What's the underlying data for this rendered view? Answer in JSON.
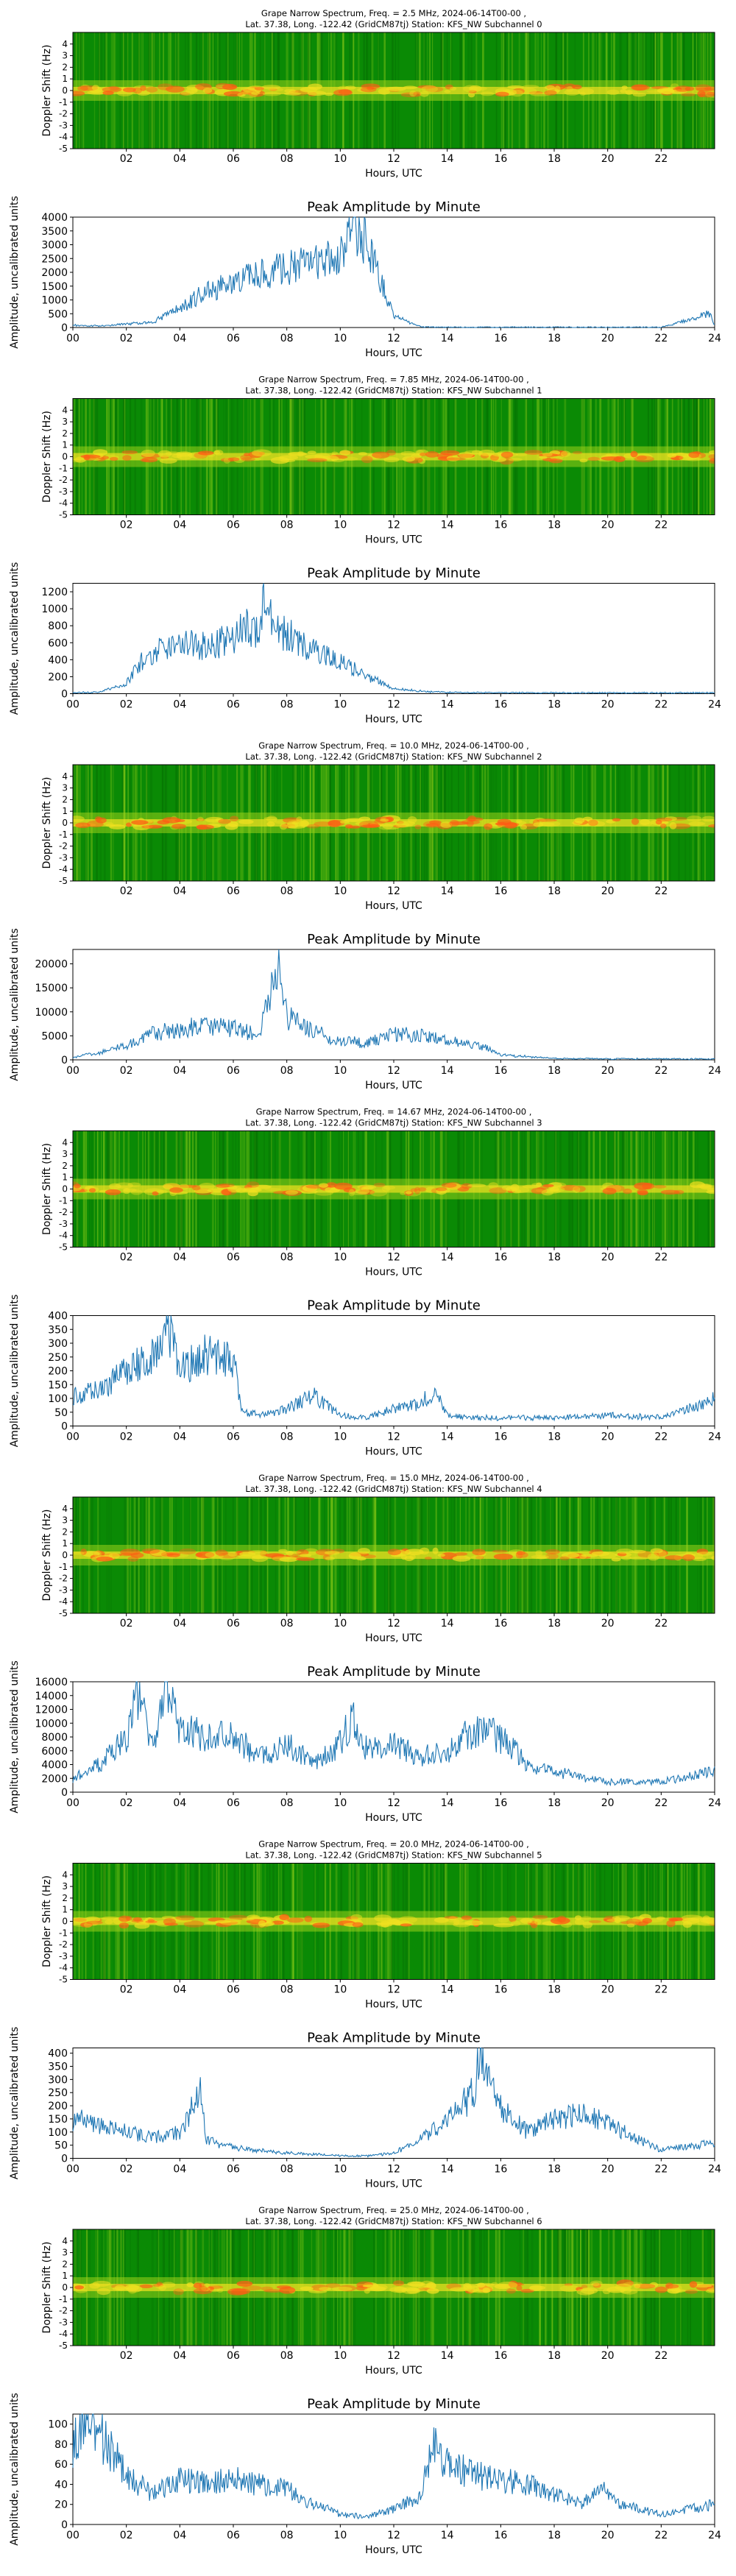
{
  "figure": {
    "xtick_labels_spectrogram": [
      "02",
      "04",
      "06",
      "08",
      "10",
      "12",
      "14",
      "16",
      "18",
      "20",
      "22"
    ],
    "xtick_labels_amplitude": [
      "00",
      "02",
      "04",
      "06",
      "08",
      "10",
      "12",
      "14",
      "16",
      "18",
      "20",
      "22",
      "24"
    ],
    "colors": {
      "line": "#1f77b4",
      "spec_bg": "#0a8a05",
      "spec_mid": "#9ad21a",
      "spec_hot": "#f0e020",
      "spec_peak": "#ff5a14"
    }
  },
  "chart_data": [
    {
      "type": "heatmap",
      "title_line1": "Grape Narrow Spectrum, Freq. = 2.5 MHz, 2024-06-14T00-00 ,",
      "title_line2": "Lat.  37.38, Long. -122.42 (GridCM87tj) Station: KFS_NW Subchannel 0",
      "xlabel": "Hours, UTC",
      "ylabel": "Doppler Shift (Hz)",
      "yticks": [
        "4",
        "3",
        "2",
        "1",
        "0",
        "-1",
        "-2",
        "-3",
        "-4",
        "-5"
      ],
      "xlim": [
        0,
        24
      ],
      "ylim": [
        -5,
        5
      ]
    },
    {
      "type": "line",
      "title": "Peak Amplitude by Minute",
      "xlabel": "Hours, UTC",
      "ylabel": "Amplitude, uncalibrated units",
      "yticks": [
        "0",
        "500",
        "1000",
        "1500",
        "2000",
        "2500",
        "3000",
        "3500",
        "4000"
      ],
      "xlim": [
        0,
        24
      ],
      "ylim": [
        0,
        4000
      ],
      "x": [
        0,
        1,
        2,
        3,
        4,
        5,
        6,
        7,
        8,
        9,
        10,
        10.5,
        11,
        11.5,
        12,
        13,
        14,
        16,
        18,
        20,
        22,
        23.8,
        24
      ],
      "y": [
        80,
        60,
        120,
        200,
        700,
        1300,
        1650,
        1900,
        2150,
        2350,
        2800,
        3600,
        3000,
        1700,
        400,
        30,
        10,
        10,
        10,
        10,
        10,
        500,
        100
      ]
    },
    {
      "type": "heatmap",
      "title_line1": "Grape Narrow Spectrum, Freq. = 7.85 MHz, 2024-06-14T00-00 ,",
      "title_line2": "Lat.  37.38, Long. -122.42 (GridCM87tj) Station: KFS_NW Subchannel 1",
      "xlabel": "Hours, UTC",
      "ylabel": "Doppler Shift (Hz)",
      "yticks": [
        "4",
        "3",
        "2",
        "1",
        "0",
        "-1",
        "-2",
        "-3",
        "-4",
        "-5"
      ],
      "xlim": [
        0,
        24
      ],
      "ylim": [
        -5,
        5
      ]
    },
    {
      "type": "line",
      "title": "Peak Amplitude by Minute",
      "xlabel": "Hours, UTC",
      "ylabel": "Amplitude, uncalibrated units",
      "yticks": [
        "0",
        "200",
        "400",
        "600",
        "800",
        "1000",
        "1200"
      ],
      "xlim": [
        0,
        24
      ],
      "ylim": [
        0,
        1300
      ],
      "x": [
        0,
        1,
        2,
        2.5,
        3,
        4,
        5,
        6,
        6.5,
        7,
        7.2,
        7.5,
        8,
        9,
        10,
        11,
        12,
        13,
        14,
        16,
        20,
        24
      ],
      "y": [
        10,
        20,
        120,
        350,
        500,
        580,
        560,
        650,
        780,
        680,
        1300,
        750,
        700,
        520,
        380,
        200,
        60,
        30,
        15,
        10,
        10,
        10
      ]
    },
    {
      "type": "heatmap",
      "title_line1": "Grape Narrow Spectrum, Freq. = 10.0 MHz, 2024-06-14T00-00 ,",
      "title_line2": "Lat.  37.38, Long. -122.42 (GridCM87tj) Station: KFS_NW Subchannel 2",
      "xlabel": "Hours, UTC",
      "ylabel": "Doppler Shift (Hz)",
      "yticks": [
        "4",
        "3",
        "2",
        "1",
        "0",
        "-1",
        "-2",
        "-3",
        "-4",
        "-5"
      ],
      "xlim": [
        0,
        24
      ],
      "ylim": [
        -5,
        5
      ]
    },
    {
      "type": "line",
      "title": "Peak Amplitude by Minute",
      "xlabel": "Hours, UTC",
      "ylabel": "Amplitude, uncalibrated units",
      "yticks": [
        "0",
        "5000",
        "10000",
        "15000",
        "20000"
      ],
      "xlim": [
        0,
        24
      ],
      "ylim": [
        0,
        23000
      ],
      "x": [
        0,
        1,
        2,
        3,
        4,
        5,
        6,
        7,
        7.7,
        8,
        9,
        10,
        11,
        12,
        13,
        14,
        15,
        15.5,
        16,
        18,
        20,
        22,
        24
      ],
      "y": [
        500,
        1500,
        3000,
        5500,
        6500,
        7000,
        6500,
        5500,
        22000,
        9000,
        6000,
        4000,
        3500,
        5500,
        5000,
        4000,
        3000,
        2500,
        1000,
        300,
        200,
        200,
        200
      ]
    },
    {
      "type": "heatmap",
      "title_line1": "Grape Narrow Spectrum, Freq. = 14.67 MHz, 2024-06-14T00-00 ,",
      "title_line2": "Lat.  37.38, Long. -122.42 (GridCM87tj) Station: KFS_NW Subchannel 3",
      "xlabel": "Hours, UTC",
      "ylabel": "Doppler Shift (Hz)",
      "yticks": [
        "4",
        "3",
        "2",
        "1",
        "0",
        "-1",
        "-2",
        "-3",
        "-4",
        "-5"
      ],
      "xlim": [
        0,
        24
      ],
      "ylim": [
        -5,
        5
      ]
    },
    {
      "type": "line",
      "title": "Peak Amplitude by Minute",
      "xlabel": "Hours, UTC",
      "ylabel": "Amplitude, uncalibrated units",
      "yticks": [
        "0",
        "50",
        "100",
        "150",
        "200",
        "250",
        "300",
        "350",
        "400"
      ],
      "xlim": [
        0,
        24
      ],
      "ylim": [
        0,
        400
      ],
      "x": [
        0,
        1,
        2,
        3,
        3.5,
        4,
        5,
        6,
        6.3,
        7,
        8,
        9,
        10,
        11,
        12,
        13,
        13.5,
        14,
        15,
        16,
        18,
        20,
        22,
        23,
        24
      ],
      "y": [
        110,
        130,
        200,
        250,
        400,
        200,
        260,
        250,
        50,
        40,
        60,
        110,
        40,
        30,
        60,
        80,
        130,
        40,
        30,
        30,
        30,
        40,
        30,
        60,
        100
      ]
    },
    {
      "type": "heatmap",
      "title_line1": "Grape Narrow Spectrum, Freq. = 15.0 MHz, 2024-06-14T00-00 ,",
      "title_line2": "Lat.  37.38, Long. -122.42 (GridCM87tj) Station: KFS_NW Subchannel 4",
      "xlabel": "Hours, UTC",
      "ylabel": "Doppler Shift (Hz)",
      "yticks": [
        "4",
        "3",
        "2",
        "1",
        "0",
        "-1",
        "-2",
        "-3",
        "-4",
        "-5"
      ],
      "xlim": [
        0,
        24
      ],
      "ylim": [
        -5,
        5
      ]
    },
    {
      "type": "line",
      "title": "Peak Amplitude by Minute",
      "xlabel": "Hours, UTC",
      "ylabel": "Amplitude, uncalibrated units",
      "yticks": [
        "0",
        "2000",
        "4000",
        "6000",
        "8000",
        "10000",
        "12000",
        "14000",
        "16000"
      ],
      "xlim": [
        0,
        24
      ],
      "ylim": [
        0,
        16000
      ],
      "x": [
        0,
        1,
        2,
        2.5,
        3,
        3.5,
        4,
        5,
        6,
        7,
        8,
        9,
        10,
        10.5,
        11,
        12,
        13,
        14,
        15,
        16,
        17,
        18,
        20,
        22,
        24
      ],
      "y": [
        2000,
        4000,
        8000,
        15500,
        6000,
        16000,
        9000,
        8000,
        8000,
        5000,
        7000,
        4000,
        7000,
        11000,
        6000,
        7000,
        5000,
        6000,
        9000,
        8000,
        4000,
        3000,
        1500,
        1500,
        3000
      ]
    },
    {
      "type": "heatmap",
      "title_line1": "Grape Narrow Spectrum, Freq. = 20.0 MHz, 2024-06-14T00-00 ,",
      "title_line2": "Lat.  37.38, Long. -122.42 (GridCM87tj) Station: KFS_NW Subchannel 5",
      "xlabel": "Hours, UTC",
      "ylabel": "Doppler Shift (Hz)",
      "yticks": [
        "4",
        "3",
        "2",
        "1",
        "0",
        "-1",
        "-2",
        "-3",
        "-4",
        "-5"
      ],
      "xlim": [
        0,
        24
      ],
      "ylim": [
        -5,
        5
      ]
    },
    {
      "type": "line",
      "title": "Peak Amplitude by Minute",
      "xlabel": "Hours, UTC",
      "ylabel": "Amplitude, uncalibrated units",
      "yticks": [
        "0",
        "50",
        "100",
        "150",
        "200",
        "250",
        "300",
        "350",
        "400"
      ],
      "xlim": [
        0,
        24
      ],
      "ylim": [
        0,
        420
      ],
      "x": [
        0,
        1,
        2,
        3,
        4,
        4.8,
        5,
        6,
        8,
        10,
        11,
        12,
        13,
        14,
        15,
        15.2,
        16,
        17,
        18,
        19,
        20,
        22,
        24
      ],
      "y": [
        150,
        130,
        100,
        80,
        100,
        250,
        70,
        40,
        20,
        10,
        10,
        20,
        70,
        140,
        250,
        400,
        200,
        100,
        150,
        170,
        130,
        30,
        60
      ]
    },
    {
      "type": "heatmap",
      "title_line1": "Grape Narrow Spectrum, Freq. = 25.0 MHz, 2024-06-14T00-00 ,",
      "title_line2": "Lat.  37.38, Long. -122.42 (GridCM87tj) Station: KFS_NW Subchannel 6",
      "xlabel": "Hours, UTC",
      "ylabel": "Doppler Shift (Hz)",
      "yticks": [
        "4",
        "3",
        "2",
        "1",
        "0",
        "-1",
        "-2",
        "-3",
        "-4",
        "-5"
      ],
      "xlim": [
        0,
        24
      ],
      "ylim": [
        -5,
        5
      ]
    },
    {
      "type": "line",
      "title": "Peak Amplitude by Minute",
      "xlabel": "Hours, UTC",
      "ylabel": "Amplitude, uncalibrated units",
      "yticks": [
        "0",
        "20",
        "40",
        "60",
        "80",
        "100"
      ],
      "xlim": [
        0,
        24
      ],
      "ylim": [
        0,
        110
      ],
      "x": [
        0,
        0.5,
        1,
        2,
        3,
        4,
        5,
        6,
        7,
        8,
        9,
        10,
        11,
        12,
        13,
        13.5,
        14,
        15,
        16,
        17,
        18,
        19,
        19.8,
        20.5,
        22,
        24
      ],
      "y": [
        80,
        105,
        90,
        50,
        30,
        45,
        40,
        45,
        40,
        35,
        20,
        10,
        8,
        15,
        30,
        80,
        60,
        50,
        45,
        40,
        30,
        20,
        40,
        20,
        10,
        20
      ]
    }
  ]
}
